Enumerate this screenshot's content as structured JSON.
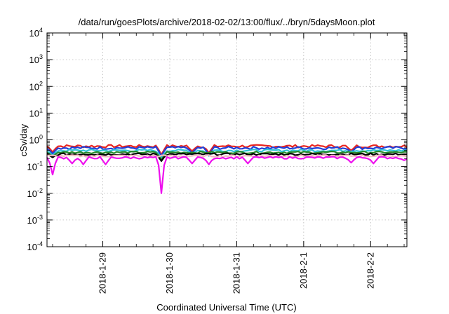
{
  "chart_data": {
    "type": "line",
    "title": "/data/run/goesPlots/archive/2018-02-02/13:00/flux/../bryn/5daysMoon.plot",
    "xlabel": "Coordinated Universal Time (UTC)",
    "ylabel": "cSv/day",
    "xlim": [
      "2018-01-28T04:00",
      "2018-02-02T13:00"
    ],
    "ylim": [
      0.0001,
      10000
    ],
    "yscale": "log",
    "grid": true,
    "legend": "none",
    "x_ticks": [
      {
        "value": "2018-01-29T00:00",
        "label": "2018-1-29"
      },
      {
        "value": "2018-01-30T00:00",
        "label": "2018-1-30"
      },
      {
        "value": "2018-01-31T00:00",
        "label": "2018-1-31"
      },
      {
        "value": "2018-02-01T00:00",
        "label": "2018-2-1"
      },
      {
        "value": "2018-02-02T00:00",
        "label": "2018-2-2"
      }
    ],
    "y_ticks": [
      {
        "value": 0.0001,
        "base": "10",
        "exp": "-4"
      },
      {
        "value": 0.001,
        "base": "10",
        "exp": "-3"
      },
      {
        "value": 0.01,
        "base": "10",
        "exp": "-2"
      },
      {
        "value": 0.1,
        "base": "10",
        "exp": "-1"
      },
      {
        "value": 1,
        "base": "10",
        "exp": "0"
      },
      {
        "value": 10,
        "base": "10",
        "exp": "1"
      },
      {
        "value": 100,
        "base": "10",
        "exp": "2"
      },
      {
        "value": 1000,
        "base": "10",
        "exp": "3"
      },
      {
        "value": 10000,
        "base": "10",
        "exp": "4"
      }
    ],
    "series": [
      {
        "color": "#e8231f",
        "base": 0.58,
        "jitter": 0.07,
        "dips": [
          [
            "2018-01-28T06:00",
            0.35
          ],
          [
            "2018-01-29T21:00",
            0.28
          ],
          [
            "2018-01-30T08:00",
            0.38
          ],
          [
            "2018-01-30T14:00",
            0.33
          ],
          [
            "2018-02-01T17:00",
            0.4
          ]
        ]
      },
      {
        "color": "#1f3fd8",
        "base": 0.5,
        "jitter": 0.06,
        "dips": [
          [
            "2018-01-28T06:00",
            0.3
          ],
          [
            "2018-01-29T21:00",
            0.25
          ],
          [
            "2018-01-30T08:00",
            0.33
          ],
          [
            "2018-01-30T14:00",
            0.29
          ],
          [
            "2018-02-01T17:00",
            0.35
          ]
        ]
      },
      {
        "color": "#2ec4d6",
        "base": 0.4,
        "jitter": 0.04,
        "dips": [
          [
            "2018-01-28T06:00",
            0.26
          ],
          [
            "2018-01-29T21:00",
            0.2
          ],
          [
            "2018-01-30T08:00",
            0.28
          ],
          [
            "2018-01-30T14:00",
            0.25
          ]
        ]
      },
      {
        "color": "#2a8a2a",
        "base": 0.34,
        "jitter": 0.03,
        "dips": [
          [
            "2018-01-28T06:00",
            0.24
          ],
          [
            "2018-01-29T21:00",
            0.18
          ]
        ]
      },
      {
        "color": "#000000",
        "base": 0.29,
        "jitter": 0.025,
        "dips": [
          [
            "2018-01-28T06:00",
            0.22
          ],
          [
            "2018-01-29T21:00",
            0.16
          ]
        ]
      },
      {
        "color": "#f2b8c0",
        "base": 0.25,
        "jitter": 0.02,
        "dips": []
      },
      {
        "color": "#ee10ee",
        "base": 0.215,
        "jitter": 0.02,
        "dips": [
          [
            "2018-01-28T06:00",
            0.05
          ],
          [
            "2018-01-28T13:00",
            0.13
          ],
          [
            "2018-01-28T17:00",
            0.12
          ],
          [
            "2018-01-29T01:00",
            0.12
          ],
          [
            "2018-01-29T21:00",
            0.01
          ],
          [
            "2018-01-30T08:00",
            0.13
          ],
          [
            "2018-01-30T14:00",
            0.12
          ],
          [
            "2018-01-31T04:00",
            0.13
          ],
          [
            "2018-02-01T17:00",
            0.14
          ],
          [
            "2018-02-02T01:00",
            0.13
          ],
          [
            "2018-02-02T12:00",
            0.17
          ]
        ]
      }
    ]
  }
}
